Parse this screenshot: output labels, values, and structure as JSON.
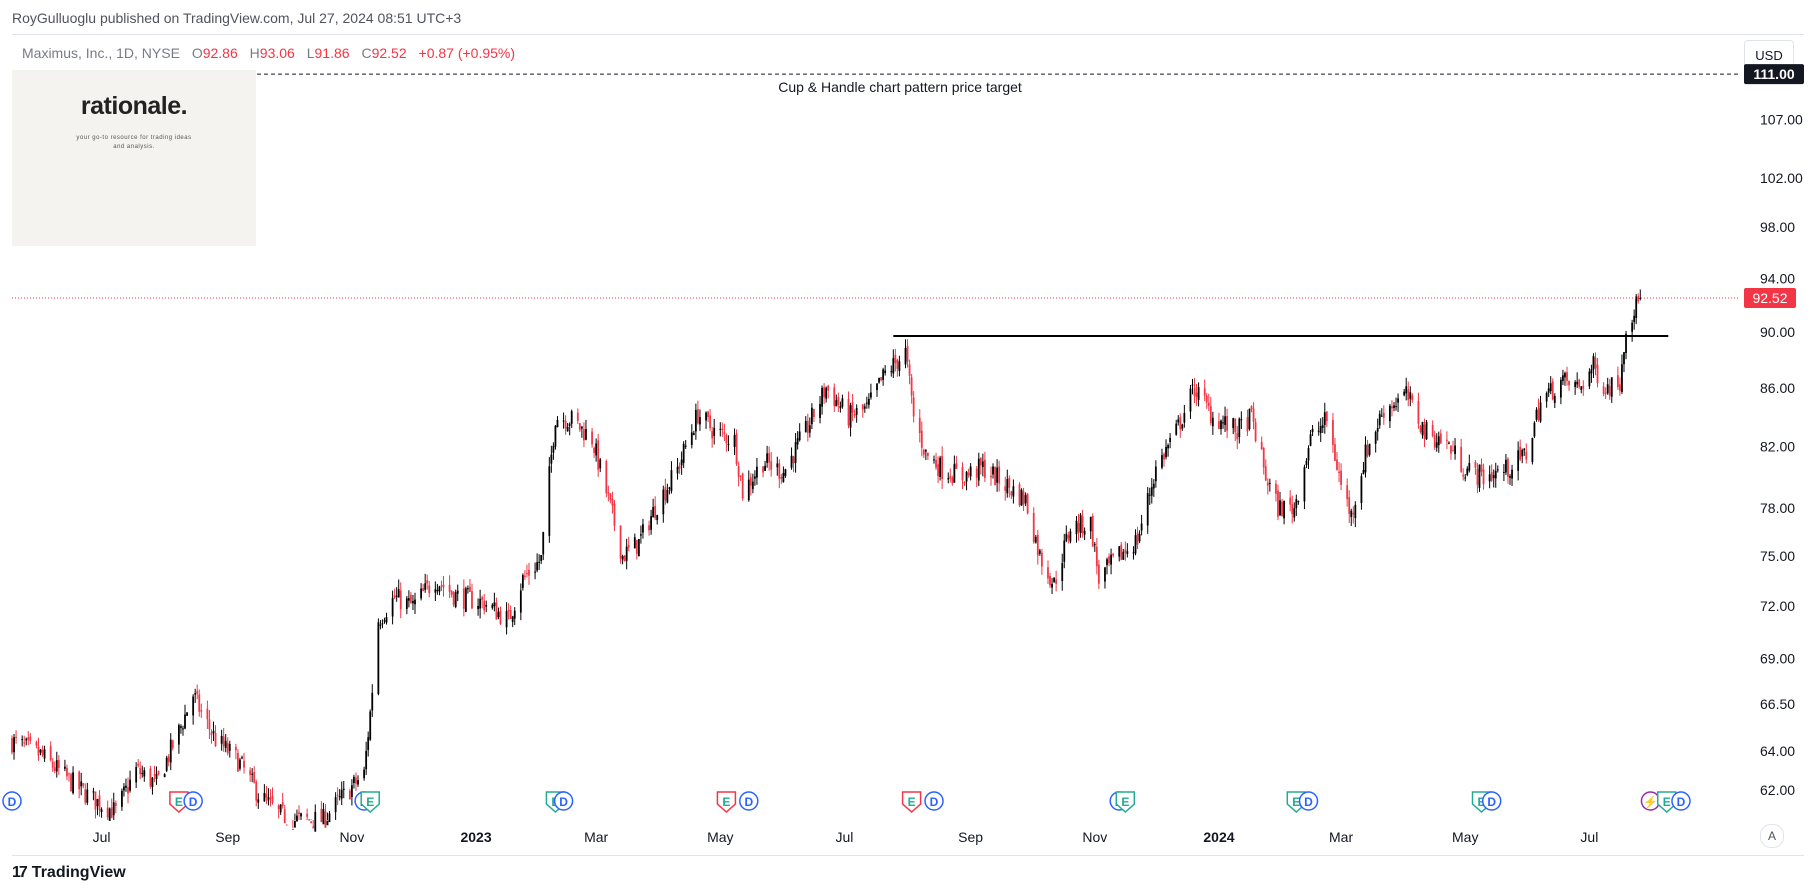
{
  "header": {
    "published_by": "RoyGulluoglu published on TradingView.com, Jul 27, 2024 08:51 UTC+3"
  },
  "legend": {
    "symbol": "Maximus, Inc., 1D, NYSE",
    "open_label": "O",
    "open": "92.86",
    "high_label": "H",
    "high": "93.06",
    "low_label": "L",
    "low": "91.86",
    "close_label": "C",
    "close": "92.52",
    "change": "+0.87 (+0.95%)"
  },
  "watermark": {
    "brand": "rationale.",
    "tagline": "your go-to resource for trading ideas and analysis."
  },
  "currency": "USD",
  "scale_mode": "A",
  "footer": {
    "logo": "TradingView",
    "logo_mark": "17"
  },
  "colors": {
    "up": "#000000",
    "down": "#f23645",
    "price_line": "#f23645",
    "grid": "#f0f3fa",
    "accent": "#131722"
  },
  "chart_data": {
    "type": "candlestick",
    "symbol": "Maximus, Inc.",
    "interval": "1D",
    "exchange": "NYSE",
    "x_tick_labels": [
      "Jul",
      "Sep",
      "Nov",
      "2023",
      "Mar",
      "May",
      "Jul",
      "Sep",
      "Nov",
      "2024",
      "Mar",
      "May",
      "Jul"
    ],
    "x_tick_dates": [
      "2022-07-01",
      "2022-09-01",
      "2022-11-01",
      "2023-01-01",
      "2023-03-01",
      "2023-05-01",
      "2023-07-01",
      "2023-09-01",
      "2023-11-01",
      "2024-01-01",
      "2024-03-01",
      "2024-05-01",
      "2024-07-01"
    ],
    "x_range": [
      "2022-05-18",
      "2024-09-13"
    ],
    "y_tick_labels": [
      "107.00",
      "102.00",
      "98.00",
      "94.00",
      "90.00",
      "86.00",
      "82.00",
      "78.00",
      "75.00",
      "72.00",
      "69.00",
      "66.50",
      "64.00",
      "62.00"
    ],
    "y_range": [
      60.5,
      114.5
    ],
    "y_scale": "log",
    "grid": false,
    "last_price": {
      "value": 92.52,
      "label": "92.52"
    },
    "target": {
      "value": 111.0,
      "label": "111.00",
      "text": "Cup & Handle chart pattern price target",
      "style": "dashed"
    },
    "resistance": {
      "value": 89.7,
      "from": "2023-07-25",
      "to": "2024-07-26"
    },
    "path": [
      [
        "2022-05-18",
        64.5
      ],
      [
        "2022-06-01",
        63.8
      ],
      [
        "2022-06-15",
        62.5
      ],
      [
        "2022-06-27",
        61.5
      ],
      [
        "2022-07-08",
        60.9
      ],
      [
        "2022-07-18",
        63.0
      ],
      [
        "2022-07-28",
        62.3
      ],
      [
        "2022-08-08",
        65.0
      ],
      [
        "2022-08-15",
        67.0
      ],
      [
        "2022-08-19",
        66.0
      ],
      [
        "2022-08-26",
        64.6
      ],
      [
        "2022-09-06",
        63.5
      ],
      [
        "2022-09-16",
        61.8
      ],
      [
        "2022-09-26",
        60.8
      ],
      [
        "2022-10-03",
        60.5
      ],
      [
        "2022-10-18",
        60.5
      ],
      [
        "2022-10-27",
        61.6
      ],
      [
        "2022-11-07",
        62.8
      ],
      [
        "2022-11-10",
        66.0
      ],
      [
        "2022-11-14",
        71.2
      ],
      [
        "2022-11-22",
        72.5
      ],
      [
        "2022-12-01",
        72.0
      ],
      [
        "2022-12-12",
        73.6
      ],
      [
        "2022-12-22",
        72.6
      ],
      [
        "2023-01-05",
        72.2
      ],
      [
        "2023-01-17",
        71.2
      ],
      [
        "2023-01-24",
        73.6
      ],
      [
        "2023-02-02",
        74.8
      ],
      [
        "2023-02-09",
        84.0
      ],
      [
        "2023-02-17",
        83.8
      ],
      [
        "2023-02-27",
        82.5
      ],
      [
        "2023-03-06",
        79.0
      ],
      [
        "2023-03-14",
        75.0
      ],
      [
        "2023-03-22",
        75.8
      ],
      [
        "2023-03-30",
        78.0
      ],
      [
        "2023-04-10",
        80.5
      ],
      [
        "2023-04-20",
        84.2
      ],
      [
        "2023-04-28",
        83.0
      ],
      [
        "2023-05-08",
        82.4
      ],
      [
        "2023-05-12",
        79.0
      ],
      [
        "2023-05-22",
        81.0
      ],
      [
        "2023-06-01",
        80.3
      ],
      [
        "2023-06-12",
        83.0
      ],
      [
        "2023-06-22",
        86.0
      ],
      [
        "2023-07-03",
        84.0
      ],
      [
        "2023-07-12",
        84.5
      ],
      [
        "2023-07-21",
        87.0
      ],
      [
        "2023-07-31",
        88.5
      ],
      [
        "2023-08-04",
        84.0
      ],
      [
        "2023-08-10",
        81.5
      ],
      [
        "2023-08-18",
        80.5
      ],
      [
        "2023-08-28",
        80.0
      ],
      [
        "2023-09-07",
        80.6
      ],
      [
        "2023-09-18",
        79.5
      ],
      [
        "2023-09-28",
        78.5
      ],
      [
        "2023-10-05",
        75.0
      ],
      [
        "2023-10-12",
        73.3
      ],
      [
        "2023-10-20",
        76.8
      ],
      [
        "2023-10-30",
        77.0
      ],
      [
        "2023-11-03",
        73.6
      ],
      [
        "2023-11-13",
        75.0
      ],
      [
        "2023-11-22",
        76.0
      ],
      [
        "2023-12-01",
        80.5
      ],
      [
        "2023-12-11",
        83.0
      ],
      [
        "2023-12-20",
        86.0
      ],
      [
        "2023-12-29",
        84.0
      ],
      [
        "2024-01-10",
        83.0
      ],
      [
        "2024-01-17",
        84.0
      ],
      [
        "2024-01-24",
        80.0
      ],
      [
        "2024-01-30",
        78.0
      ],
      [
        "2024-02-07",
        78.0
      ],
      [
        "2024-02-15",
        82.5
      ],
      [
        "2024-02-23",
        83.8
      ],
      [
        "2024-03-01",
        79.5
      ],
      [
        "2024-03-06",
        77.5
      ],
      [
        "2024-03-13",
        81.5
      ],
      [
        "2024-03-22",
        84.5
      ],
      [
        "2024-04-02",
        85.5
      ],
      [
        "2024-04-11",
        83.0
      ],
      [
        "2024-04-22",
        82.2
      ],
      [
        "2024-05-01",
        80.5
      ],
      [
        "2024-05-10",
        80.0
      ],
      [
        "2024-05-22",
        80.5
      ],
      [
        "2024-05-31",
        81.5
      ],
      [
        "2024-06-07",
        85.0
      ],
      [
        "2024-06-17",
        86.5
      ],
      [
        "2024-06-26",
        86.0
      ],
      [
        "2024-07-03",
        87.5
      ],
      [
        "2024-07-09",
        86.0
      ],
      [
        "2024-07-16",
        86.5
      ],
      [
        "2024-07-19",
        90.5
      ],
      [
        "2024-07-26",
        92.5
      ]
    ],
    "events": [
      {
        "date": "2022-05-18",
        "kind": "D",
        "label": "D"
      },
      {
        "date": "2022-08-08",
        "kind": "E",
        "label": "E"
      },
      {
        "date": "2022-08-15",
        "kind": "D",
        "label": "D"
      },
      {
        "date": "2022-11-07",
        "kind": "D",
        "label": "D"
      },
      {
        "date": "2022-11-10",
        "kind": "E",
        "label": "E"
      },
      {
        "date": "2023-02-09",
        "kind": "E",
        "label": "E"
      },
      {
        "date": "2023-02-13",
        "kind": "D",
        "label": "D"
      },
      {
        "date": "2023-05-04",
        "kind": "E",
        "label": "E"
      },
      {
        "date": "2023-05-15",
        "kind": "D",
        "label": "D"
      },
      {
        "date": "2023-08-03",
        "kind": "E",
        "label": "E"
      },
      {
        "date": "2023-08-14",
        "kind": "D",
        "label": "D"
      },
      {
        "date": "2023-11-13",
        "kind": "D",
        "label": "D"
      },
      {
        "date": "2023-11-16",
        "kind": "E",
        "label": "E"
      },
      {
        "date": "2024-02-08",
        "kind": "E",
        "label": "E"
      },
      {
        "date": "2024-02-14",
        "kind": "D",
        "label": "D"
      },
      {
        "date": "2024-05-09",
        "kind": "E",
        "label": "E"
      },
      {
        "date": "2024-05-14",
        "kind": "D",
        "label": "D"
      },
      {
        "date": "2024-07-31",
        "kind": "S",
        "label": "⚡"
      },
      {
        "date": "2024-08-08",
        "kind": "E",
        "label": "E"
      },
      {
        "date": "2024-08-15",
        "kind": "D",
        "label": "D"
      }
    ]
  }
}
